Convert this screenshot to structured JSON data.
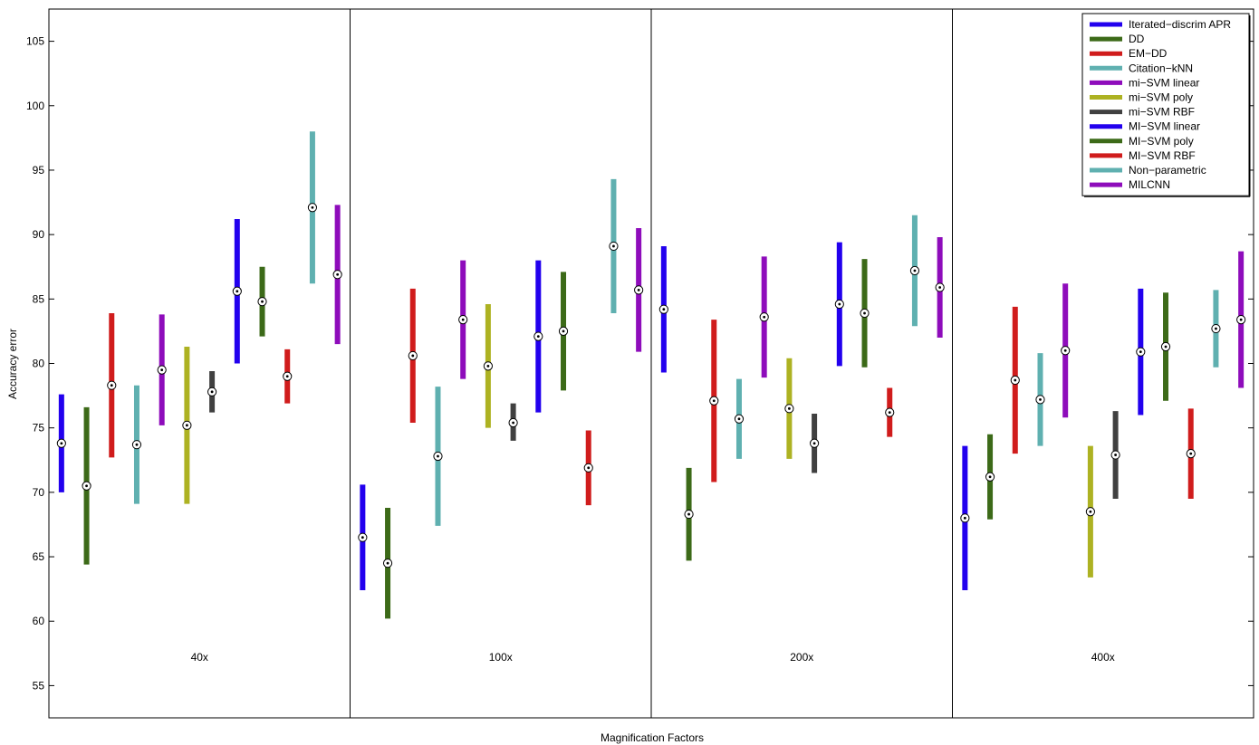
{
  "chart_data": {
    "type": "boxplot",
    "title": "",
    "xlabel": "Magnification Factors",
    "ylabel": "Accuracy error",
    "ylim": [
      52.5,
      107.5
    ],
    "yticks": [
      55,
      60,
      65,
      70,
      75,
      80,
      85,
      90,
      95,
      100,
      105
    ],
    "grid": false,
    "legend_position": "top-right",
    "groups": [
      "40x",
      "100x",
      "200x",
      "400x"
    ],
    "series": [
      {
        "name": "Iterated−discrim APR",
        "color": "#2200ee",
        "data": [
          [
            70.0,
            73.8,
            77.6
          ],
          [
            62.4,
            66.5,
            70.6
          ],
          [
            79.3,
            84.2,
            89.1
          ],
          [
            62.4,
            68.0,
            73.6
          ]
        ]
      },
      {
        "name": "DD",
        "color": "#3c6a18",
        "data": [
          [
            64.4,
            70.5,
            76.6
          ],
          [
            60.2,
            64.5,
            68.8
          ],
          [
            64.7,
            68.3,
            71.9
          ],
          [
            67.9,
            71.2,
            74.5
          ]
        ]
      },
      {
        "name": "EM−DD",
        "color": "#d01c1c",
        "data": [
          [
            72.7,
            78.3,
            83.9
          ],
          [
            75.4,
            80.6,
            85.8
          ],
          [
            70.8,
            77.1,
            83.4
          ],
          [
            73.0,
            78.7,
            84.4
          ]
        ]
      },
      {
        "name": "Citation−kNN",
        "color": "#5fb0b0",
        "data": [
          [
            69.1,
            73.7,
            78.3
          ],
          [
            67.4,
            72.8,
            78.2
          ],
          [
            72.6,
            75.7,
            78.8
          ],
          [
            73.6,
            77.2,
            80.8
          ]
        ]
      },
      {
        "name": "mi−SVM linear",
        "color": "#8e0cbb",
        "data": [
          [
            75.2,
            79.5,
            83.8
          ],
          [
            78.8,
            83.4,
            88.0
          ],
          [
            78.9,
            83.6,
            88.3
          ],
          [
            75.8,
            81.0,
            86.2
          ]
        ]
      },
      {
        "name": "mi−SVM poly",
        "color": "#adb222",
        "data": [
          [
            69.1,
            75.2,
            81.3
          ],
          [
            75.0,
            79.8,
            84.6
          ],
          [
            72.6,
            76.5,
            80.4
          ],
          [
            63.4,
            68.5,
            73.6
          ]
        ]
      },
      {
        "name": "mi−SVM RBF",
        "color": "#404040",
        "data": [
          [
            76.2,
            77.8,
            79.4
          ],
          [
            74.0,
            75.4,
            76.9
          ],
          [
            71.5,
            73.8,
            76.1
          ],
          [
            69.5,
            72.9,
            76.3
          ]
        ]
      },
      {
        "name": "MI−SVM linear",
        "color": "#2200ee",
        "data": [
          [
            80.0,
            85.6,
            91.2
          ],
          [
            76.2,
            82.1,
            88.0
          ],
          [
            79.8,
            84.6,
            89.4
          ],
          [
            76.0,
            80.9,
            85.8
          ]
        ]
      },
      {
        "name": "MI−SVM poly",
        "color": "#3c6a18",
        "data": [
          [
            82.1,
            84.8,
            87.5
          ],
          [
            77.9,
            82.5,
            87.1
          ],
          [
            79.7,
            83.9,
            88.1
          ],
          [
            77.1,
            81.3,
            85.5
          ]
        ]
      },
      {
        "name": "MI−SVM RBF",
        "color": "#d01c1c",
        "data": [
          [
            76.9,
            79.0,
            81.1
          ],
          [
            69.0,
            71.9,
            74.8
          ],
          [
            74.3,
            76.2,
            78.1
          ],
          [
            69.5,
            73.0,
            76.5
          ]
        ]
      },
      {
        "name": "Non−parametric",
        "color": "#5fb0b0",
        "data": [
          [
            86.2,
            92.1,
            98.0
          ],
          [
            83.9,
            89.1,
            94.3
          ],
          [
            82.9,
            87.2,
            91.5
          ],
          [
            79.7,
            82.7,
            85.7
          ]
        ]
      },
      {
        "name": "MILCNN",
        "color": "#8e0cbb",
        "data": [
          [
            81.5,
            86.9,
            92.3
          ],
          [
            80.9,
            85.7,
            90.5
          ],
          [
            82.0,
            85.9,
            89.8
          ],
          [
            78.1,
            83.4,
            88.7
          ]
        ]
      }
    ]
  }
}
